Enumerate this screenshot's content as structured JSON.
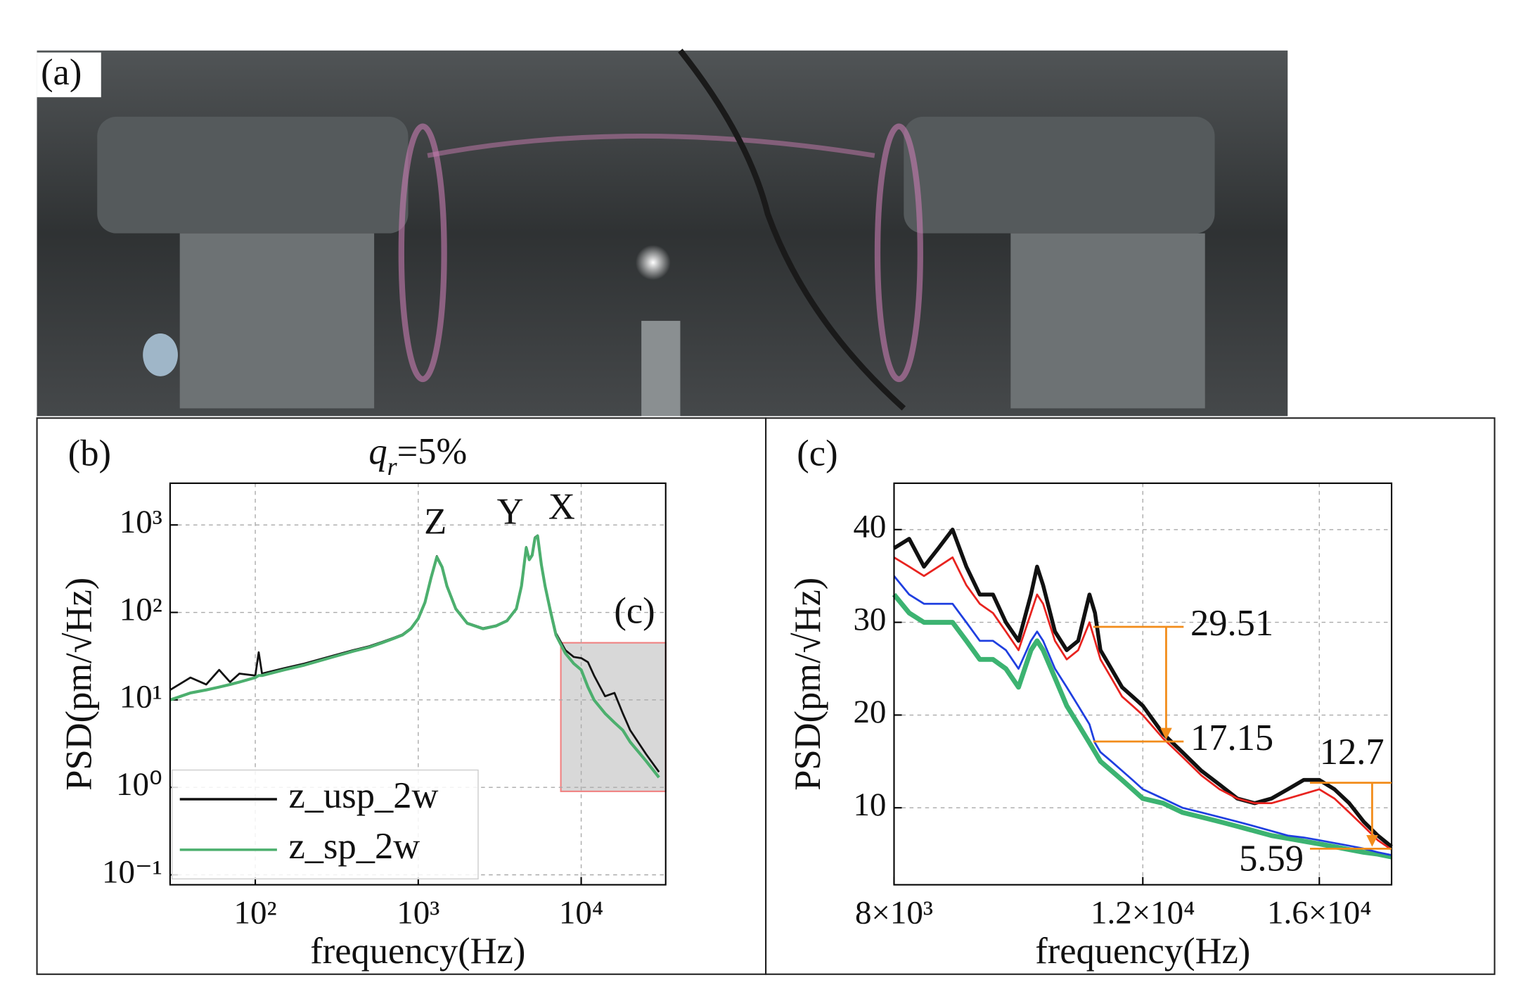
{
  "photo_label": "(a)",
  "chart_data": [
    {
      "type": "line",
      "panel": "(b)",
      "title": [
        "q",
        "r",
        "=5%"
      ],
      "xlabel": "frequency(Hz)",
      "ylabel": "PSD(pm/√Hz)",
      "xscale": "log",
      "yscale": "log",
      "grid": true,
      "legend": "lower left",
      "xlim": [
        30,
        33000
      ],
      "ylim": [
        0.077,
        3000
      ],
      "xticks": [
        {
          "value": 100,
          "label": "10²"
        },
        {
          "value": 1000,
          "label": "10³"
        },
        {
          "value": 10000,
          "label": "10⁴"
        }
      ],
      "yticks": [
        {
          "value": 0.1,
          "label": "10⁻¹"
        },
        {
          "value": 1,
          "label": "10⁰"
        },
        {
          "value": 10,
          "label": "10¹"
        },
        {
          "value": 100,
          "label": "10²"
        },
        {
          "value": 1000,
          "label": "10³"
        }
      ],
      "annotations": [
        "Z",
        "Y",
        "X",
        "(c)"
      ],
      "inset_region": {
        "xlim": [
          7500,
          33000
        ],
        "ylim": [
          0.9,
          45
        ]
      },
      "x": [
        30,
        40,
        50,
        60,
        70,
        80,
        100,
        105,
        110,
        150,
        200,
        300,
        400,
        500,
        600,
        700,
        800,
        900,
        1000,
        1100,
        1200,
        1300,
        1400,
        1500,
        1700,
        2000,
        2500,
        3000,
        3500,
        4000,
        4300,
        4600,
        4800,
        5000,
        5200,
        5400,
        5700,
        6000,
        6500,
        7000,
        8000,
        9000,
        10000,
        11000,
        12000,
        14000,
        16000,
        18000,
        20000,
        25000,
        30000
      ],
      "series": [
        {
          "name": "z_usp_2w",
          "color": "#111111",
          "values": [
            13,
            18,
            15,
            22,
            16,
            20,
            19,
            35,
            20,
            23,
            26,
            32,
            37,
            41,
            46,
            51,
            56,
            66,
            86,
            132,
            255,
            440,
            335,
            205,
            112,
            76,
            66,
            71,
            81,
            112,
            205,
            560,
            410,
            460,
            720,
            760,
            360,
            205,
            105,
            58,
            37,
            31,
            30,
            27,
            19,
            11,
            12,
            7,
            4.5,
            2.4,
            1.5
          ]
        },
        {
          "name": "z_sp_2w",
          "color": "#4caf6e",
          "values": [
            10,
            12,
            13,
            14,
            15,
            16,
            18,
            19,
            19,
            22,
            25,
            31,
            36,
            40,
            45,
            50,
            55,
            65,
            85,
            130,
            250,
            430,
            330,
            200,
            110,
            75,
            65,
            70,
            80,
            110,
            200,
            550,
            400,
            450,
            700,
            750,
            350,
            200,
            100,
            55,
            34,
            26,
            22,
            14,
            10,
            7,
            5.5,
            4.5,
            3.3,
            2,
            1.3
          ]
        }
      ]
    },
    {
      "type": "line",
      "panel": "(c)",
      "xlabel": "frequency(Hz)",
      "ylabel": "PSD(pm/√Hz)",
      "xscale": "log",
      "yscale": "linear",
      "grid": true,
      "xlim": [
        8000,
        18000
      ],
      "ylim": [
        1.7,
        45
      ],
      "xticks": [
        {
          "value": 8000,
          "label": "8×10³"
        },
        {
          "value": 12000,
          "label": "1.2×10⁴"
        },
        {
          "value": 16000,
          "label": "1.6×10⁴"
        }
      ],
      "yticks": [
        10,
        20,
        30,
        40
      ],
      "markers": [
        {
          "from": 29.51,
          "to": 17.15
        },
        {
          "from": 12.7,
          "to": 5.59
        }
      ],
      "x": [
        8000,
        8200,
        8400,
        8600,
        8800,
        9000,
        9200,
        9400,
        9600,
        9800,
        10000,
        10100,
        10200,
        10400,
        10600,
        10800,
        11000,
        11100,
        11200,
        11400,
        11600,
        11800,
        12000,
        12400,
        12800,
        13200,
        13600,
        14000,
        14400,
        14800,
        15200,
        15600,
        16000,
        16400,
        16800,
        17200,
        17600,
        18000
      ],
      "series": [
        {
          "color": "#111111",
          "values": [
            38,
            39,
            36,
            38,
            40,
            36,
            33,
            33,
            30,
            28,
            33,
            36,
            34,
            29,
            27,
            28,
            33,
            31,
            27,
            25,
            23,
            22,
            21,
            18,
            16,
            14,
            12.5,
            11,
            10.5,
            11,
            12,
            13,
            13,
            12,
            10.5,
            8.5,
            7,
            5.8
          ]
        },
        {
          "color": "#e8231f",
          "values": [
            37,
            36,
            35,
            36,
            37,
            34,
            32,
            31,
            29,
            27,
            31,
            33,
            32,
            28,
            26,
            27,
            30,
            28,
            26,
            24,
            22,
            21,
            20,
            17.5,
            15.5,
            13.5,
            12,
            11,
            10.5,
            10.5,
            11,
            11.5,
            12,
            11,
            9.5,
            8,
            6.5,
            5.5
          ]
        },
        {
          "color": "#3cb371",
          "values": [
            33,
            31,
            30,
            30,
            30,
            28,
            26,
            26,
            25,
            23,
            27,
            28,
            27,
            24,
            21,
            19,
            17,
            16,
            15,
            14,
            13,
            12,
            11,
            10.5,
            9.5,
            9,
            8.5,
            8,
            7.5,
            7,
            6.7,
            6.4,
            6.1,
            5.8,
            5.5,
            5.2,
            5.0,
            4.7
          ]
        },
        {
          "color": "#1f3fe0",
          "values": [
            35,
            33,
            32,
            32,
            32,
            30,
            28,
            28,
            27,
            25,
            28,
            29,
            28,
            25,
            23,
            21,
            19,
            17,
            16,
            15,
            14,
            13,
            12,
            11,
            10,
            9.5,
            9,
            8.5,
            8,
            7.5,
            7,
            6.8,
            6.5,
            6.2,
            5.9,
            5.6,
            5.2,
            4.9
          ]
        }
      ]
    }
  ]
}
